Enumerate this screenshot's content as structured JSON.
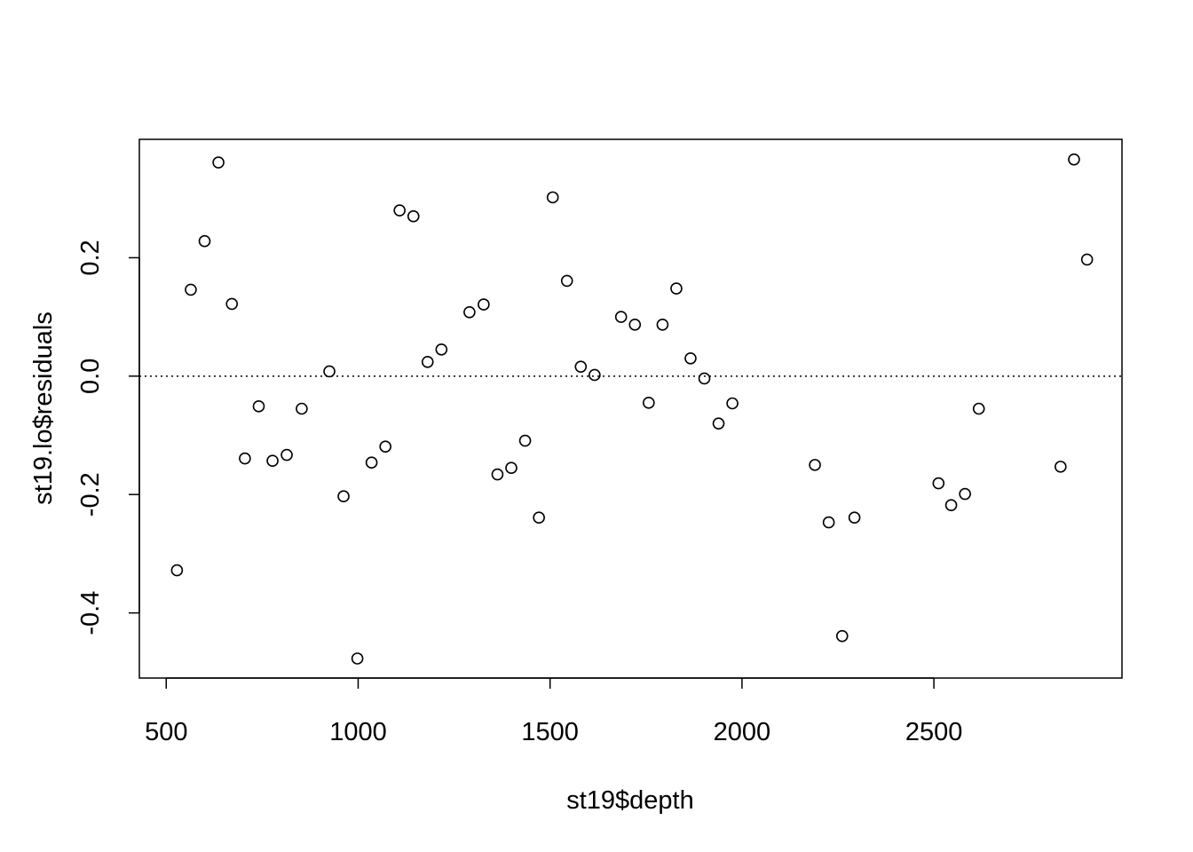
{
  "chart_data": {
    "type": "scatter",
    "title": "",
    "xlabel": "st19$depth",
    "ylabel": "st19.lo$residuals",
    "xlim": [
      430,
      2990
    ],
    "ylim": [
      -0.51,
      0.4
    ],
    "x_ticks": [
      500,
      1000,
      1500,
      2000,
      2500
    ],
    "y_ticks": [
      -0.4,
      -0.2,
      0.0,
      0.2
    ],
    "x_tick_labels": [
      "500",
      "1000",
      "1500",
      "2000",
      "2500"
    ],
    "y_tick_labels": [
      "-0.4",
      "-0.2",
      "0.0",
      "0.2"
    ],
    "reference_line": {
      "y": 0.0,
      "style": "dotted"
    },
    "grid": false,
    "series": [
      {
        "marker": "open-circle",
        "points": [
          [
            528,
            -0.328
          ],
          [
            564,
            0.146
          ],
          [
            600,
            0.228
          ],
          [
            636,
            0.361
          ],
          [
            671,
            0.122
          ],
          [
            705,
            -0.139
          ],
          [
            741,
            -0.051
          ],
          [
            777,
            -0.143
          ],
          [
            814,
            -0.133
          ],
          [
            853,
            -0.055
          ],
          [
            925,
            0.008
          ],
          [
            962,
            -0.203
          ],
          [
            998,
            -0.477
          ],
          [
            1035,
            -0.146
          ],
          [
            1071,
            -0.119
          ],
          [
            1108,
            0.28
          ],
          [
            1144,
            0.27
          ],
          [
            1181,
            0.024
          ],
          [
            1217,
            0.045
          ],
          [
            1290,
            0.108
          ],
          [
            1327,
            0.121
          ],
          [
            1363,
            -0.166
          ],
          [
            1399,
            -0.155
          ],
          [
            1435,
            -0.109
          ],
          [
            1471,
            -0.239
          ],
          [
            1507,
            0.302
          ],
          [
            1544,
            0.161
          ],
          [
            1580,
            0.016
          ],
          [
            1616,
            0.002
          ],
          [
            1685,
            0.1
          ],
          [
            1721,
            0.087
          ],
          [
            1757,
            -0.045
          ],
          [
            1793,
            0.087
          ],
          [
            1829,
            0.148
          ],
          [
            1866,
            0.03
          ],
          [
            1902,
            -0.004
          ],
          [
            1939,
            -0.08
          ],
          [
            1975,
            -0.046
          ],
          [
            2190,
            -0.15
          ],
          [
            2226,
            -0.247
          ],
          [
            2261,
            -0.439
          ],
          [
            2293,
            -0.239
          ],
          [
            2512,
            -0.181
          ],
          [
            2545,
            -0.218
          ],
          [
            2581,
            -0.199
          ],
          [
            2617,
            -0.055
          ],
          [
            2830,
            -0.153
          ],
          [
            2865,
            0.366
          ],
          [
            2899,
            0.197
          ]
        ]
      }
    ]
  }
}
